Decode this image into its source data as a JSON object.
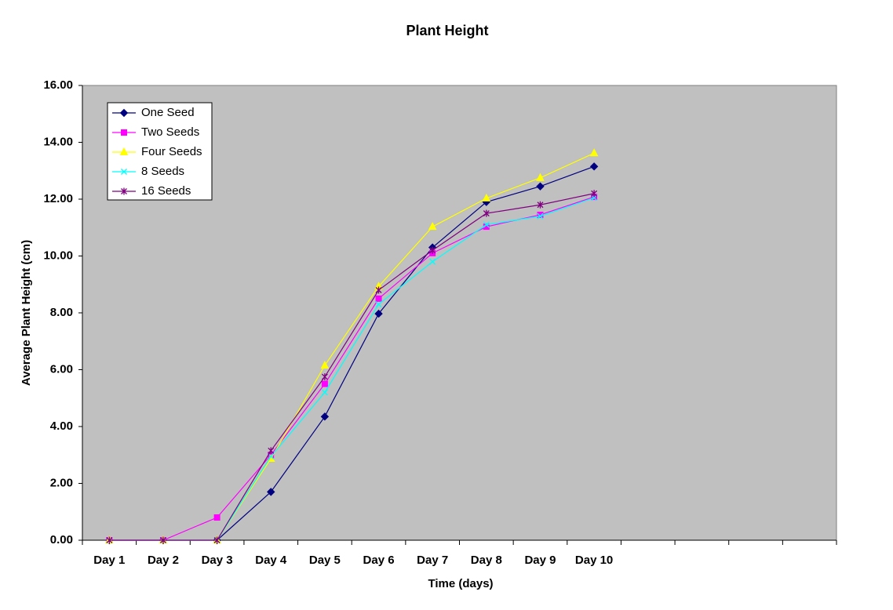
{
  "chart_data": {
    "type": "line",
    "title": "Plant Height",
    "x_label": "Time (days)",
    "y_label": "Average Plant Height (cm)",
    "categories": [
      "Day 1",
      "Day 2",
      "Day 3",
      "Day 4",
      "Day 5",
      "Day 6",
      "Day 7",
      "Day 8",
      "Day 9",
      "Day 10",
      null,
      null,
      null,
      null
    ],
    "ylim": [
      0,
      16
    ],
    "yticks": [
      {
        "value": 0,
        "label": "0.00"
      },
      {
        "value": 2,
        "label": "2.00"
      },
      {
        "value": 4,
        "label": "4.00"
      },
      {
        "value": 6,
        "label": "6.00"
      },
      {
        "value": 8,
        "label": "8.00"
      },
      {
        "value": 10,
        "label": "10.00"
      },
      {
        "value": 12,
        "label": "12.00"
      },
      {
        "value": 14,
        "label": "14.00"
      },
      {
        "value": 16,
        "label": "16.00"
      }
    ],
    "plot_background": "#c0c0c0",
    "series": [
      {
        "name": "One Seed",
        "color": "#000080",
        "marker": "diamond",
        "values": [
          0,
          0,
          0,
          1.7,
          4.35,
          7.97,
          10.3,
          11.9,
          12.45,
          13.15,
          null,
          null,
          null,
          null
        ]
      },
      {
        "name": "Two Seeds",
        "color": "#ff00ff",
        "marker": "square",
        "values": [
          0,
          0,
          0.8,
          3.0,
          5.5,
          8.5,
          10.1,
          11.03,
          11.45,
          12.08,
          null,
          null,
          null,
          null
        ]
      },
      {
        "name": "Four Seeds",
        "color": "#ffff00",
        "marker": "triangle",
        "values": [
          0,
          0,
          0,
          2.87,
          6.15,
          8.93,
          11.03,
          12.03,
          12.75,
          13.62,
          null,
          null,
          null,
          null
        ]
      },
      {
        "name": "8 Seeds",
        "color": "#00ffff",
        "marker": "x",
        "values": [
          0,
          0,
          0,
          2.95,
          5.2,
          8.3,
          9.8,
          11.1,
          11.4,
          12.05,
          null,
          null,
          null,
          null
        ]
      },
      {
        "name": "16 Seeds",
        "color": "#800080",
        "marker": "star",
        "values": [
          0,
          0,
          0,
          3.15,
          5.75,
          8.8,
          10.2,
          11.5,
          11.8,
          12.2,
          null,
          null,
          null,
          null
        ]
      }
    ]
  }
}
